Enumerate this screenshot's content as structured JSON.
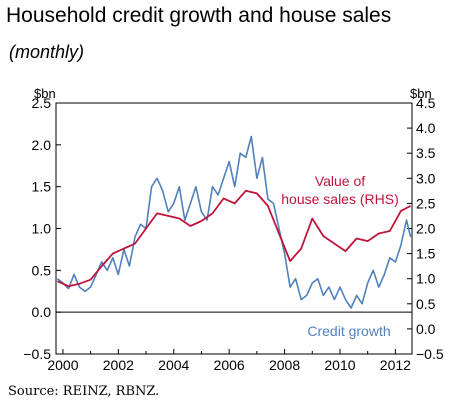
{
  "chart_data": {
    "type": "line",
    "title": "Household credit growth and house sales",
    "subtitle": "(monthly)",
    "source": "Source: REINZ, RBNZ.",
    "left_unit": "$bn",
    "right_unit": "$bn",
    "ylim_left": [
      -0.5,
      2.5
    ],
    "ylim_right": [
      -0.5,
      4.5
    ],
    "xlim": [
      1999.75,
      2012.6
    ],
    "x_ticks": [
      2000,
      2002,
      2004,
      2006,
      2008,
      2010,
      2012
    ],
    "x_tick_labels": [
      "2000",
      "2002",
      "2004",
      "2006",
      "2008",
      "2010",
      "2012"
    ],
    "y_left_ticks": [
      -0.5,
      0.0,
      0.5,
      1.0,
      1.5,
      2.0,
      2.5
    ],
    "y_left_tick_labels": [
      "−0.5",
      "0.0",
      "0.5",
      "1.0",
      "1.5",
      "2.0",
      "2.5"
    ],
    "y_right_ticks": [
      -0.5,
      0.0,
      0.5,
      1.0,
      1.5,
      2.0,
      2.5,
      3.0,
      3.5,
      4.0,
      4.5
    ],
    "y_right_tick_labels": [
      "−0.5",
      "0.0",
      "0.5",
      "1.0",
      "1.5",
      "2.0",
      "2.5",
      "3.0",
      "3.5",
      "4.0",
      "4.5"
    ],
    "grid": false,
    "colors": {
      "credit": "#4f81bd",
      "sales": "#c0143c"
    },
    "series": [
      {
        "name": "Credit growth",
        "axis": "left",
        "x": [
          1999.8,
          2000.0,
          2000.2,
          2000.4,
          2000.6,
          2000.8,
          2001.0,
          2001.2,
          2001.4,
          2001.6,
          2001.8,
          2002.0,
          2002.2,
          2002.4,
          2002.6,
          2002.8,
          2003.0,
          2003.2,
          2003.4,
          2003.6,
          2003.8,
          2004.0,
          2004.2,
          2004.4,
          2004.6,
          2004.8,
          2005.0,
          2005.2,
          2005.4,
          2005.6,
          2005.8,
          2006.0,
          2006.2,
          2006.4,
          2006.6,
          2006.8,
          2007.0,
          2007.2,
          2007.4,
          2007.6,
          2007.8,
          2008.0,
          2008.2,
          2008.4,
          2008.6,
          2008.8,
          2009.0,
          2009.2,
          2009.4,
          2009.6,
          2009.8,
          2010.0,
          2010.2,
          2010.4,
          2010.6,
          2010.8,
          2011.0,
          2011.2,
          2011.4,
          2011.6,
          2011.8,
          2012.0,
          2012.2,
          2012.4,
          2012.55
        ],
        "y": [
          0.4,
          0.35,
          0.28,
          0.45,
          0.3,
          0.25,
          0.3,
          0.45,
          0.6,
          0.5,
          0.65,
          0.45,
          0.75,
          0.55,
          0.9,
          1.05,
          1.0,
          1.5,
          1.6,
          1.45,
          1.2,
          1.3,
          1.5,
          1.1,
          1.3,
          1.5,
          1.2,
          1.1,
          1.5,
          1.4,
          1.6,
          1.8,
          1.5,
          1.9,
          1.85,
          2.1,
          1.6,
          1.85,
          1.35,
          1.3,
          1.0,
          0.7,
          0.3,
          0.4,
          0.15,
          0.2,
          0.35,
          0.4,
          0.2,
          0.3,
          0.15,
          0.3,
          0.15,
          0.05,
          0.2,
          0.1,
          0.35,
          0.5,
          0.3,
          0.45,
          0.65,
          0.6,
          0.8,
          1.1,
          0.9
        ]
      },
      {
        "name": "Value of house sales (RHS)",
        "axis": "right",
        "x": [
          1999.8,
          2000.2,
          2000.6,
          2001.0,
          2001.4,
          2001.8,
          2002.2,
          2002.6,
          2003.0,
          2003.4,
          2003.8,
          2004.2,
          2004.6,
          2005.0,
          2005.4,
          2005.8,
          2006.2,
          2006.6,
          2007.0,
          2007.4,
          2007.8,
          2008.2,
          2008.6,
          2009.0,
          2009.4,
          2009.8,
          2010.2,
          2010.6,
          2011.0,
          2011.4,
          2011.8,
          2012.2,
          2012.55
        ],
        "y": [
          0.95,
          0.85,
          0.9,
          0.98,
          1.25,
          1.5,
          1.6,
          1.7,
          2.0,
          2.3,
          2.25,
          2.2,
          2.05,
          2.15,
          2.3,
          2.6,
          2.5,
          2.75,
          2.7,
          2.45,
          1.9,
          1.35,
          1.6,
          2.2,
          1.85,
          1.7,
          1.55,
          1.8,
          1.75,
          1.9,
          1.95,
          2.35,
          2.45
        ]
      }
    ],
    "annotations": [
      {
        "series": "sales",
        "lines": [
          "Value of",
          "house sales (RHS)"
        ]
      },
      {
        "series": "credit",
        "lines": [
          "Credit growth"
        ]
      }
    ]
  }
}
